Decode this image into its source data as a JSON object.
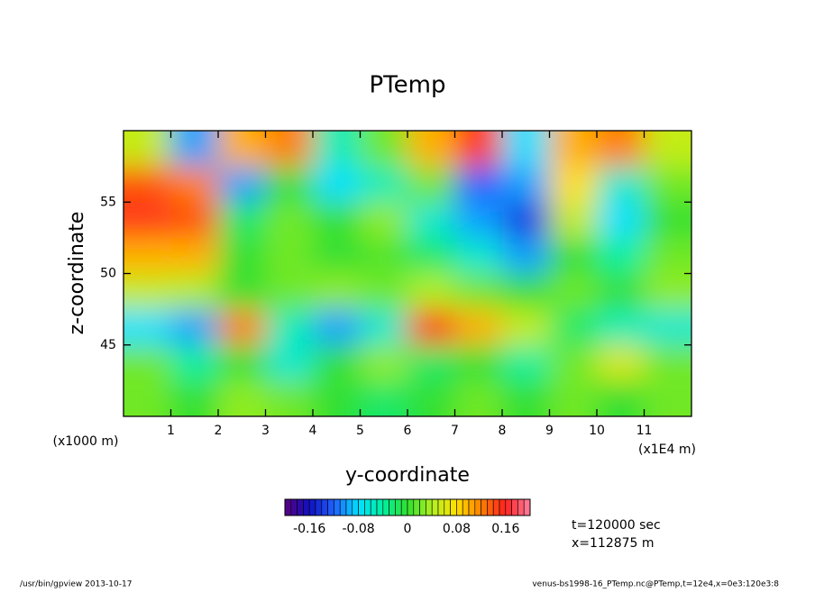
{
  "chart_data": {
    "type": "heatmap",
    "title": "PTemp",
    "x_label": "y-coordinate",
    "y_label": "z-coordinate",
    "x_unit": "(x1E4 m)",
    "y_unit": "(x1000 m)",
    "annotations": [
      "t=120000 sec",
      "x=112875 m"
    ],
    "footer_left": "/usr/bin/gpview  2013-10-17",
    "footer_right": "venus-bs1998-16_PTemp.nc@PTemp,t=12e4,x=0e3:120e3:8",
    "xlim": [
      0,
      12
    ],
    "xticks": [
      1,
      2,
      3,
      4,
      5,
      6,
      7,
      8,
      9,
      10,
      11
    ],
    "ylim": [
      40,
      60
    ],
    "yticks": [
      45,
      50,
      55
    ],
    "x": [
      0.5,
      1.5,
      2.5,
      3.5,
      4.5,
      5.5,
      6.5,
      7.5,
      8.5,
      9.5,
      10.5,
      11.5
    ],
    "y": [
      41.25,
      43.75,
      46.25,
      48.75,
      51.25,
      53.75,
      56.25,
      58.75
    ],
    "z": [
      [
        0.02,
        0.0,
        0.03,
        0.02,
        0.0,
        -0.02,
        0.0,
        0.02,
        0.0,
        0.02,
        0.0,
        0.02
      ],
      [
        0.02,
        -0.04,
        0.0,
        -0.06,
        0.0,
        0.03,
        -0.02,
        0.0,
        -0.04,
        0.02,
        0.06,
        0.02
      ],
      [
        -0.08,
        -0.1,
        0.12,
        -0.05,
        -0.1,
        -0.06,
        0.15,
        0.1,
        0.05,
        -0.02,
        -0.05,
        -0.06
      ],
      [
        0.05,
        0.04,
        0.0,
        0.02,
        0.03,
        0.02,
        0.04,
        0.02,
        0.0,
        0.02,
        0.0,
        0.03
      ],
      [
        0.1,
        0.1,
        0.0,
        0.02,
        0.0,
        0.01,
        -0.02,
        -0.06,
        -0.1,
        0.0,
        -0.04,
        0.02
      ],
      [
        0.15,
        0.14,
        -0.02,
        0.02,
        0.0,
        0.03,
        -0.06,
        -0.1,
        -0.14,
        0.05,
        -0.08,
        0.0
      ],
      [
        0.14,
        0.12,
        -0.1,
        0.0,
        -0.08,
        -0.05,
        0.02,
        -0.12,
        -0.1,
        0.08,
        -0.06,
        0.02
      ],
      [
        0.05,
        -0.1,
        0.1,
        0.12,
        -0.05,
        0.02,
        0.1,
        0.15,
        -0.08,
        0.1,
        0.12,
        0.05
      ]
    ],
    "colorbar": {
      "range": [
        -0.2,
        0.2
      ],
      "ticks": [
        -0.16,
        -0.08,
        0,
        0.08,
        0.16
      ]
    },
    "colormap": [
      "#5a0080",
      "#1010c0",
      "#2060ff",
      "#00e0ff",
      "#00f0a0",
      "#30e030",
      "#b0f020",
      "#ffe000",
      "#ff8000",
      "#ff2020",
      "#ff80a0"
    ]
  }
}
